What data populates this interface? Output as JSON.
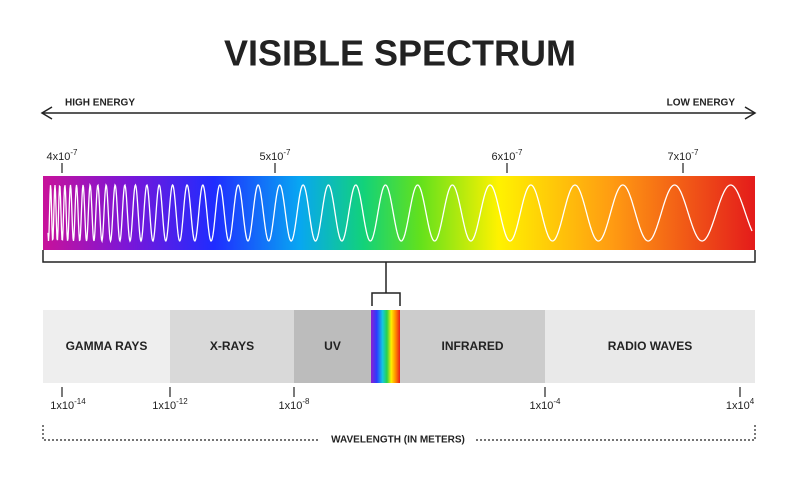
{
  "title": "VISIBLE SPECTRUM",
  "energy_axis": {
    "high": "HIGH ENERGY",
    "low": "LOW ENERGY"
  },
  "top_scale": {
    "ticks": [
      {
        "mantissa": "4x10",
        "exponent": "-7"
      },
      {
        "mantissa": "5x10",
        "exponent": "-7"
      },
      {
        "mantissa": "6x10",
        "exponent": "-7"
      },
      {
        "mantissa": "7x10",
        "exponent": "-7"
      }
    ]
  },
  "bands": [
    {
      "label": "GAMMA RAYS"
    },
    {
      "label": "X-RAYS"
    },
    {
      "label": "UV"
    },
    {
      "label": "INFRARED"
    },
    {
      "label": "RADIO WAVES"
    }
  ],
  "bottom_scale": {
    "ticks": [
      {
        "mantissa": "1x10",
        "exponent": "-14"
      },
      {
        "mantissa": "1x10",
        "exponent": "-12"
      },
      {
        "mantissa": "1x10",
        "exponent": "-8"
      },
      {
        "mantissa": "1x10",
        "exponent": "-4"
      },
      {
        "mantissa": "1x10",
        "exponent": "4"
      }
    ]
  },
  "axis_label": "WAVELENGTH (IN METERS)"
}
